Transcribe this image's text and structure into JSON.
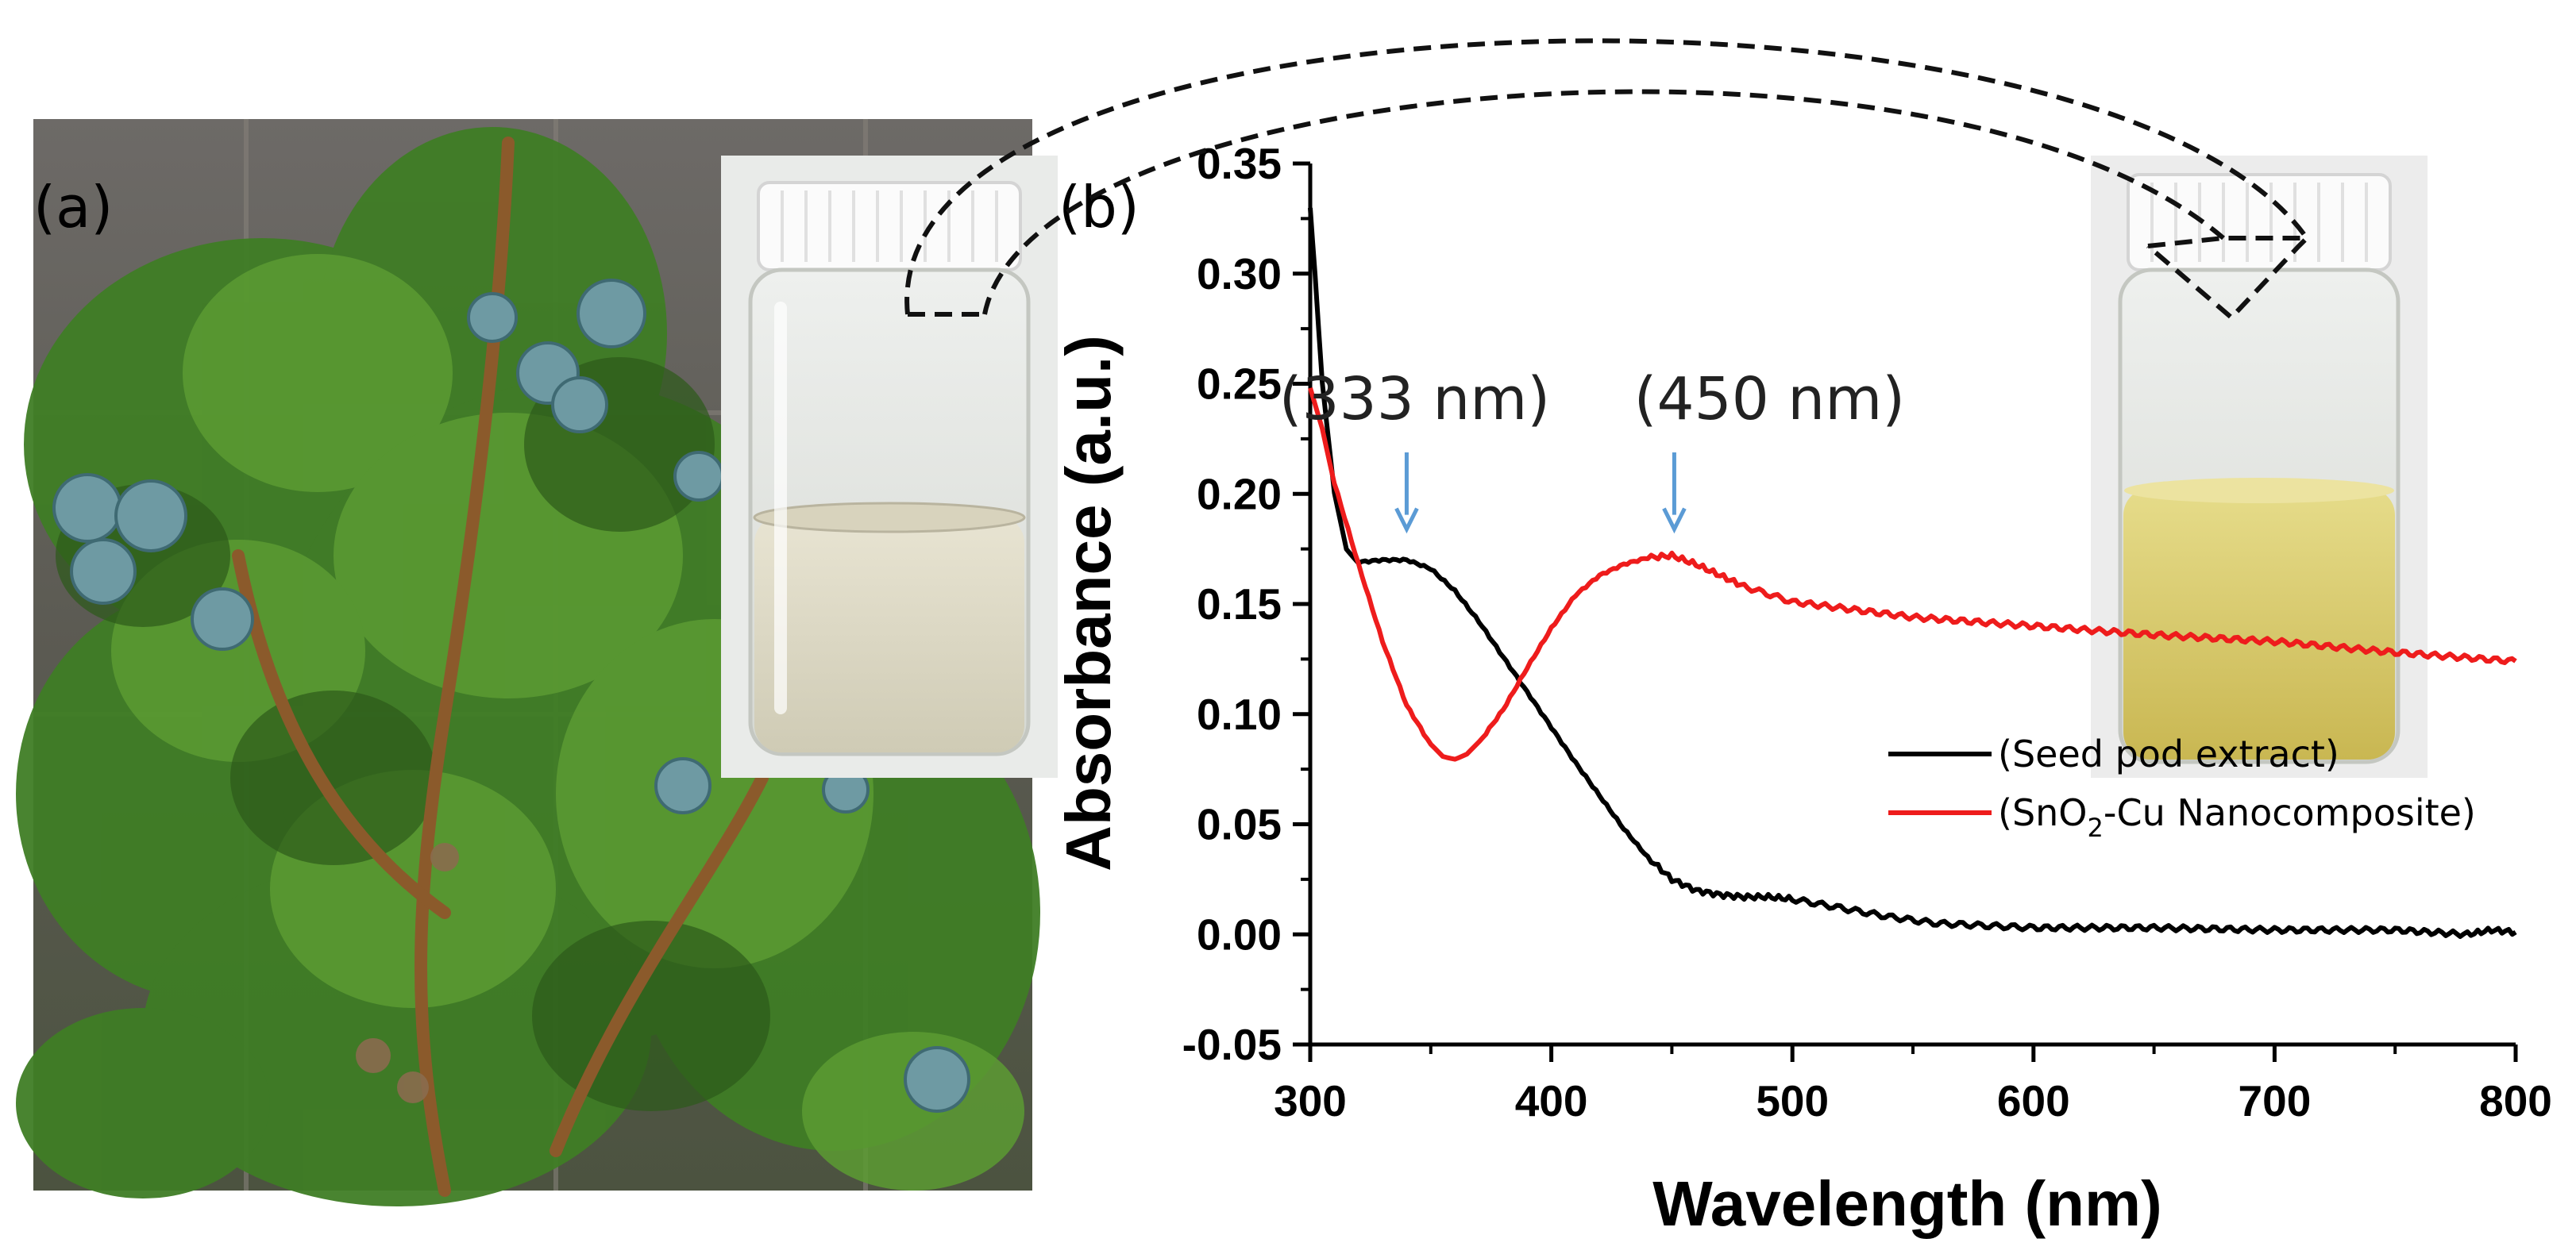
{
  "panel_a": {
    "label": "(a)",
    "photo": "cypress-branch-with-seed-pods",
    "inset_photo": "vial-clear-seed-pod-extract"
  },
  "panel_b": {
    "label": "(b)",
    "inset_photo": "vial-yellow-nanocomposite-suspension"
  },
  "colors": {
    "seed_pod_extract": "#000000",
    "nanocomposite": "#ee1c1c",
    "arrow_blue": "#5b9bd5"
  },
  "chart_data": {
    "type": "line",
    "xlabel": "Wavelength (nm)",
    "ylabel": "Absorbance (a.u.)",
    "xlim": [
      300,
      800
    ],
    "ylim": [
      -0.05,
      0.35
    ],
    "xticks": [
      "300",
      "400",
      "500",
      "600",
      "700",
      "800"
    ],
    "yticks": [
      "-0.05",
      "0.00",
      "0.05",
      "0.10",
      "0.15",
      "0.20",
      "0.25",
      "0.30",
      "0.35"
    ],
    "legend_position": "bottom-right",
    "series": [
      {
        "name": "(Seed pod extract)",
        "x": [
          300,
          302,
          305,
          310,
          315,
          320,
          330,
          340,
          350,
          360,
          370,
          380,
          390,
          400,
          410,
          420,
          430,
          440,
          450,
          460,
          470,
          480,
          490,
          500,
          520,
          540,
          560,
          580,
          600,
          650,
          700,
          750,
          780,
          790,
          800
        ],
        "values": [
          0.33,
          0.3,
          0.25,
          0.2,
          0.175,
          0.169,
          0.17,
          0.17,
          0.166,
          0.156,
          0.142,
          0.126,
          0.11,
          0.094,
          0.078,
          0.063,
          0.048,
          0.035,
          0.025,
          0.02,
          0.018,
          0.017,
          0.017,
          0.016,
          0.012,
          0.008,
          0.005,
          0.004,
          0.003,
          0.003,
          0.002,
          0.002,
          0.0,
          0.002,
          0.001
        ]
      },
      {
        "name": "(SnO2-Cu Nanocomposite)",
        "name_main": "(SnO",
        "name_sub": "2",
        "name_rest": "-Cu Nanocomposite)",
        "x": [
          300,
          305,
          310,
          320,
          330,
          340,
          350,
          355,
          360,
          365,
          370,
          380,
          390,
          400,
          410,
          420,
          430,
          440,
          450,
          460,
          470,
          480,
          500,
          550,
          600,
          650,
          700,
          750,
          800
        ],
        "values": [
          0.248,
          0.23,
          0.205,
          0.168,
          0.133,
          0.104,
          0.086,
          0.081,
          0.08,
          0.082,
          0.087,
          0.102,
          0.121,
          0.139,
          0.154,
          0.163,
          0.168,
          0.171,
          0.172,
          0.168,
          0.163,
          0.158,
          0.151,
          0.144,
          0.14,
          0.136,
          0.133,
          0.128,
          0.124
        ]
      }
    ],
    "annotations": [
      {
        "text": "(333 nm)",
        "x": 340,
        "y": 0.184
      },
      {
        "text": "(450 nm)",
        "x": 451,
        "y": 0.184
      }
    ]
  }
}
